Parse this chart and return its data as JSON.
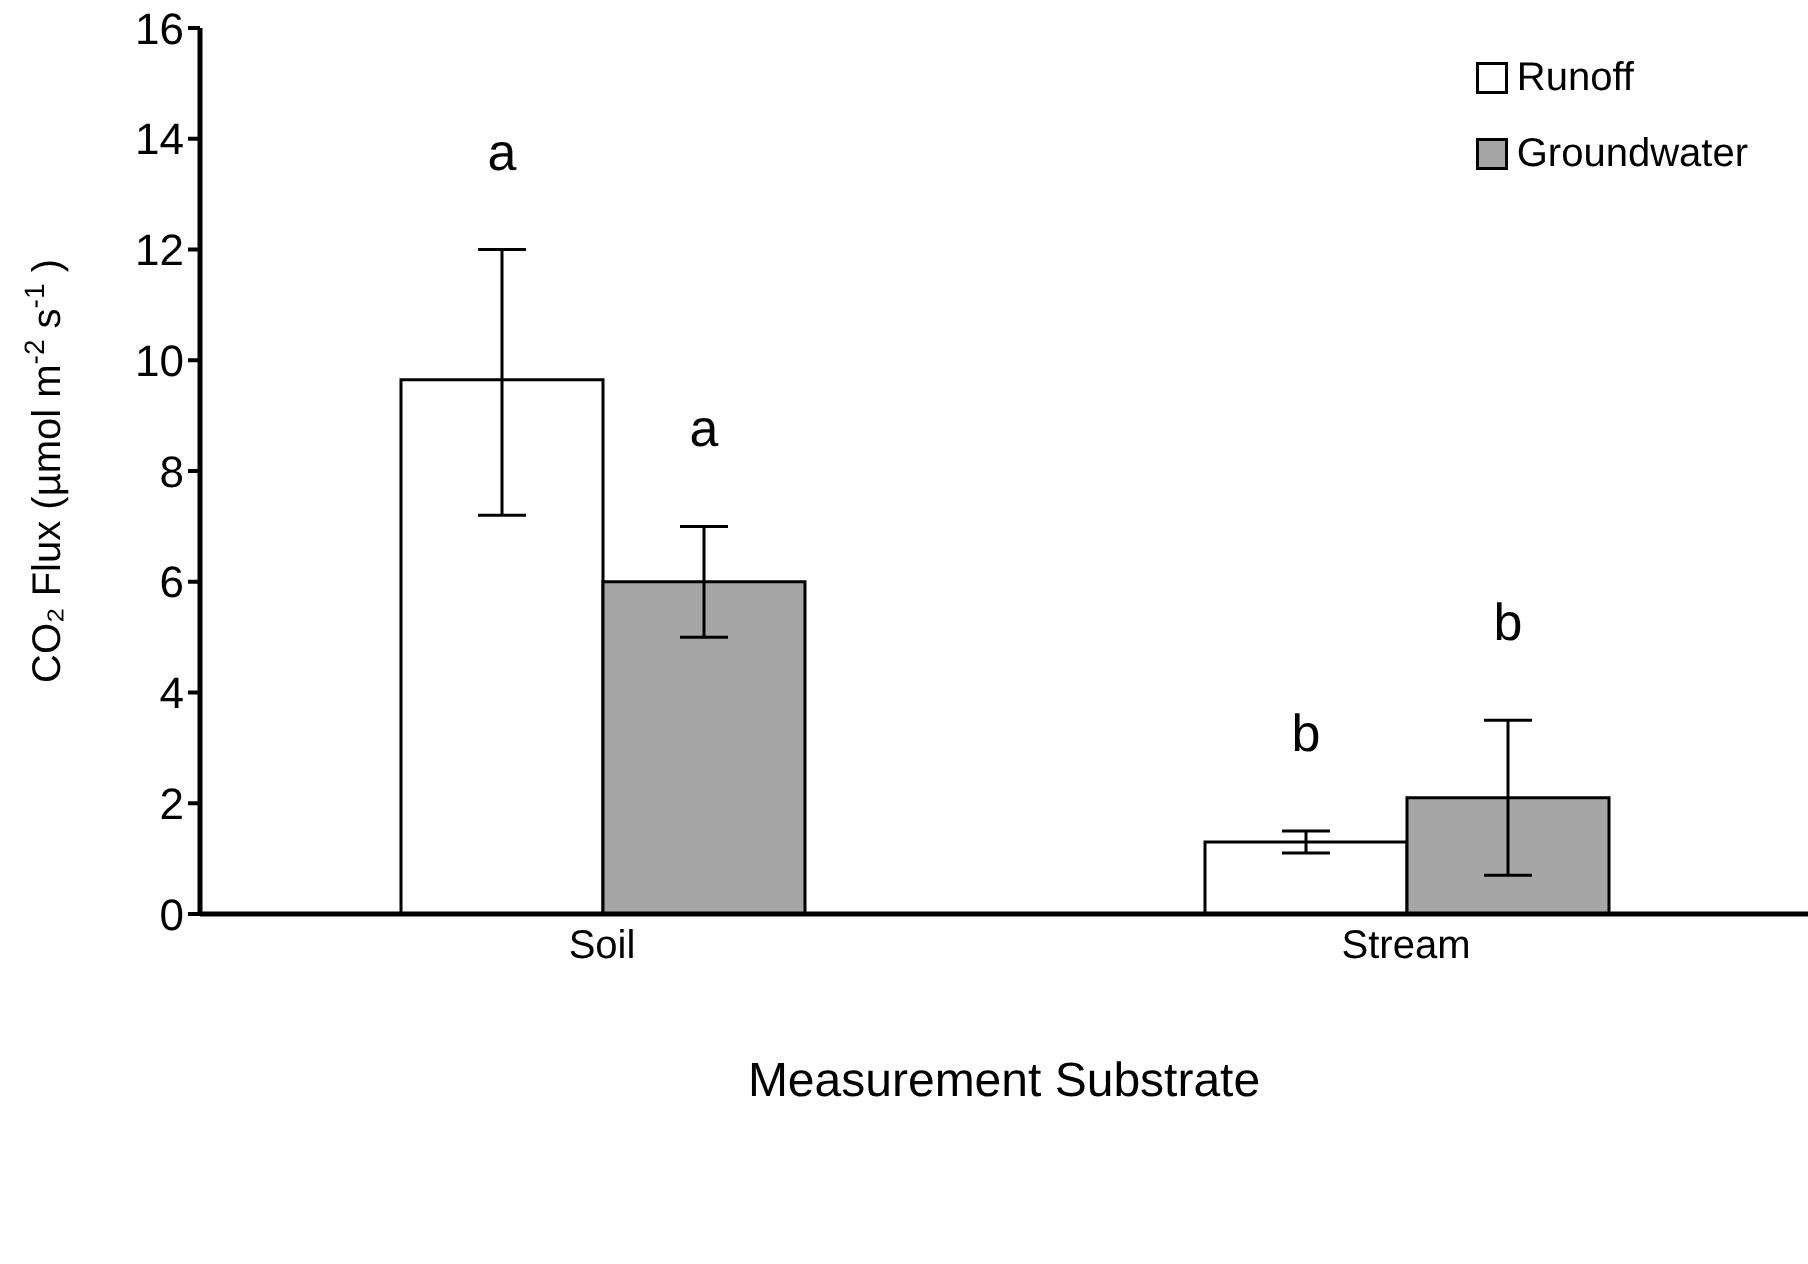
{
  "chart_data": {
    "type": "bar",
    "xlabel": "Measurement Substrate",
    "ylabel": "CO₂ Flux (µmol m$^{-2}$ s$^{-1}$)",
    "categories": [
      "Soil",
      "Stream"
    ],
    "series": [
      {
        "name": "Runoff",
        "color": "#ffffff",
        "values": [
          9.65,
          1.3
        ],
        "errors": [
          [
            7.2,
            12
          ],
          [
            1.1,
            1.5
          ]
        ]
      },
      {
        "name": "Groundwater",
        "color": "#a6a6a6",
        "values": [
          6,
          2.1
        ],
        "errors": [
          [
            5,
            7
          ],
          [
            0.7,
            3.5
          ]
        ]
      }
    ],
    "ylim": [
      0,
      16
    ],
    "yticks": [
      0,
      2,
      4,
      6,
      8,
      10,
      12,
      14,
      16
    ],
    "grid": false,
    "legend": "top right",
    "annotations": [
      "a",
      "a",
      "b",
      "b"
    ]
  }
}
